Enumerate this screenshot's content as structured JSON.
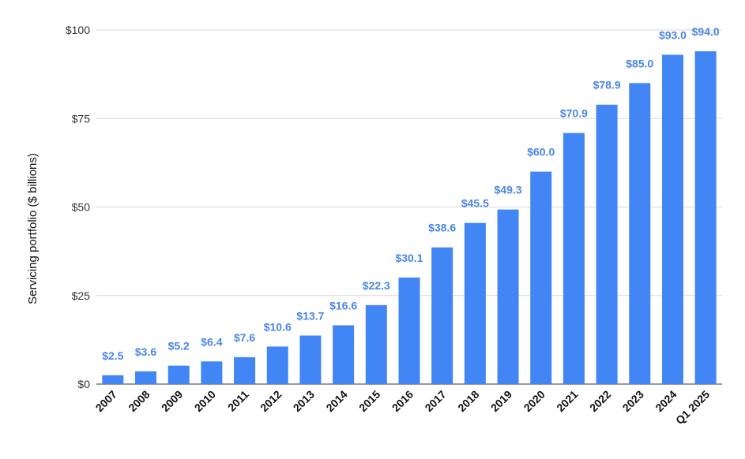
{
  "chart_data": {
    "type": "bar",
    "title": "",
    "xlabel": "",
    "ylabel": "Servicing portfolio ($ billions)",
    "ylim": [
      0,
      100
    ],
    "yticks": [
      {
        "value": 0,
        "label": "$0"
      },
      {
        "value": 25,
        "label": "$25"
      },
      {
        "value": 50,
        "label": "$50"
      },
      {
        "value": 75,
        "label": "$75"
      },
      {
        "value": 100,
        "label": "$100"
      }
    ],
    "grid": true,
    "legend": "none",
    "bar_color": "#4285f4",
    "label_color": "#4a86e8",
    "categories": [
      "2007",
      "2008",
      "2009",
      "2010",
      "2011",
      "2012",
      "2013",
      "2014",
      "2015",
      "2016",
      "2017",
      "2018",
      "2019",
      "2020",
      "2021",
      "2022",
      "2023",
      "2024",
      "Q1 2025"
    ],
    "values": [
      2.5,
      3.6,
      5.2,
      6.4,
      7.6,
      10.6,
      13.7,
      16.6,
      22.3,
      30.1,
      38.6,
      45.5,
      49.3,
      60.0,
      70.9,
      78.9,
      85.0,
      93.0,
      94.0
    ],
    "data_labels": [
      "$2.5",
      "$3.6",
      "$5.2",
      "$6.4",
      "$7.6",
      "$10.6",
      "$13.7",
      "$16.6",
      "$22.3",
      "$30.1",
      "$38.6",
      "$45.5",
      "$49.3",
      "$60.0",
      "$70.9",
      "$78.9",
      "$85.0",
      "$93.0",
      "$94.0"
    ]
  }
}
